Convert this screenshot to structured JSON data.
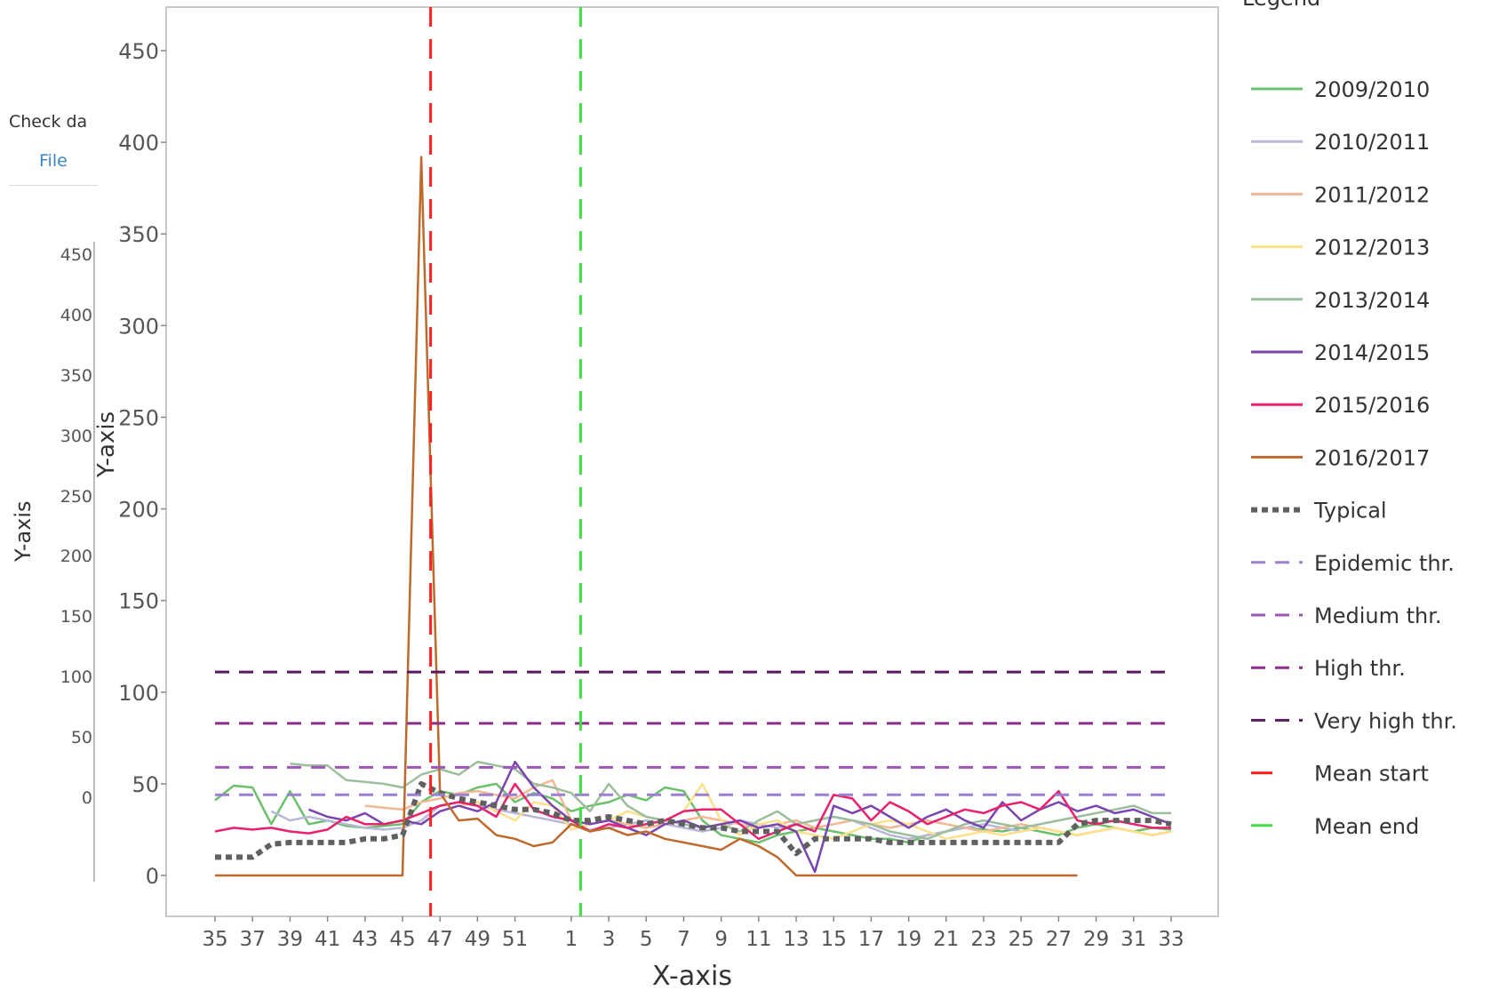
{
  "background_panel": {
    "tab_label": "Check da",
    "file_link": "File",
    "y_ticks": [
      "450",
      "400",
      "350",
      "300",
      "250",
      "200",
      "150",
      "100",
      "50",
      "0"
    ],
    "ylabel": "Y-axis"
  },
  "chart_data": {
    "type": "line",
    "title": "",
    "xlabel": "X-axis",
    "ylabel": "Y-axis",
    "legend_title": "Legend",
    "legend_position": "right",
    "ylim": [
      -20,
      470
    ],
    "y_ticks": [
      0,
      50,
      100,
      150,
      200,
      250,
      300,
      350,
      400,
      450
    ],
    "x_ticks": [
      "35",
      "37",
      "39",
      "41",
      "43",
      "45",
      "47",
      "49",
      "51",
      "1",
      "3",
      "5",
      "7",
      "9",
      "11",
      "13",
      "15",
      "17",
      "19",
      "21",
      "23",
      "25",
      "27",
      "29",
      "31",
      "33"
    ],
    "x": [
      "35",
      "36",
      "37",
      "38",
      "39",
      "40",
      "41",
      "42",
      "43",
      "44",
      "45",
      "46",
      "47",
      "48",
      "49",
      "50",
      "51",
      "52",
      "53",
      "1",
      "2",
      "3",
      "4",
      "5",
      "6",
      "7",
      "8",
      "9",
      "10",
      "11",
      "12",
      "13",
      "14",
      "15",
      "16",
      "17",
      "18",
      "19",
      "20",
      "21",
      "22",
      "23",
      "24",
      "25",
      "26",
      "27",
      "28",
      "29",
      "30",
      "31",
      "32",
      "33"
    ],
    "colors": {
      "2009/2010": "#6cc06c",
      "2010/2011": "#b8b8da",
      "2011/2012": "#f2b894",
      "2012/2013": "#fbe18a",
      "2013/2014": "#9cbe9c",
      "2014/2015": "#7a45b0",
      "2015/2016": "#e8206e",
      "2016/2017": "#bd6a2c",
      "Typical": "#606060",
      "Epidemic thr.": "#9b80cf",
      "Medium thr.": "#9e55b8",
      "High thr.": "#8c2d8a",
      "Very high thr.": "#5c1a5c",
      "Mean start": "#ff2020",
      "Mean end": "#40e040"
    },
    "series": [
      {
        "name": "2009/2010",
        "style": "solid",
        "values": [
          41,
          49,
          48,
          28,
          46,
          28,
          30,
          27,
          26,
          27,
          28,
          40,
          46,
          44,
          48,
          50,
          40,
          45,
          42,
          35,
          38,
          40,
          44,
          41,
          48,
          46,
          30,
          22,
          20,
          18,
          22,
          24,
          26,
          24,
          22,
          20,
          20,
          18,
          22,
          24,
          26,
          25,
          24,
          26,
          24,
          22,
          26,
          28,
          26,
          24,
          26,
          25
        ]
      },
      {
        "name": "2010/2011",
        "style": "solid",
        "values": [
          null,
          null,
          null,
          35,
          30,
          32,
          30,
          28,
          26,
          25,
          26,
          30,
          38,
          40,
          38,
          36,
          34,
          32,
          30,
          28,
          25,
          26,
          28,
          30,
          28,
          26,
          24,
          26,
          30,
          28,
          26,
          28,
          30,
          32,
          30,
          26,
          22,
          20,
          22,
          24,
          26,
          28,
          26,
          24,
          26,
          24,
          22,
          24,
          26,
          24,
          22,
          24
        ]
      },
      {
        "name": "2011/2012",
        "style": "solid",
        "values": [
          null,
          null,
          null,
          null,
          null,
          null,
          null,
          null,
          38,
          37,
          36,
          40,
          42,
          45,
          46,
          44,
          42,
          48,
          52,
          30,
          28,
          30,
          28,
          26,
          28,
          30,
          32,
          30,
          28,
          26,
          28,
          30,
          26,
          28,
          30,
          28,
          26,
          28,
          30,
          28,
          26,
          24,
          26,
          28,
          26,
          24,
          22,
          24,
          26,
          24,
          22,
          24
        ]
      },
      {
        "name": "2012/2013",
        "style": "solid",
        "values": [
          null,
          null,
          null,
          null,
          null,
          null,
          null,
          null,
          null,
          null,
          null,
          null,
          null,
          38,
          40,
          35,
          30,
          40,
          38,
          25,
          28,
          30,
          35,
          32,
          30,
          35,
          50,
          30,
          22,
          28,
          30,
          24,
          22,
          20,
          24,
          28,
          30,
          28,
          24,
          20,
          22,
          24,
          22,
          24,
          26,
          24,
          22,
          24,
          26,
          24,
          22,
          24
        ]
      },
      {
        "name": "2013/2014",
        "style": "solid",
        "values": [
          null,
          null,
          null,
          null,
          61,
          60,
          60,
          52,
          51,
          50,
          48,
          55,
          58,
          55,
          62,
          60,
          58,
          50,
          48,
          45,
          35,
          50,
          38,
          32,
          30,
          28,
          26,
          28,
          24,
          30,
          35,
          28,
          30,
          32,
          30,
          28,
          24,
          22,
          20,
          24,
          28,
          30,
          28,
          26,
          28,
          30,
          32,
          34,
          36,
          38,
          34,
          34
        ]
      },
      {
        "name": "2014/2015",
        "style": "solid",
        "values": [
          null,
          null,
          null,
          null,
          null,
          36,
          32,
          30,
          34,
          28,
          30,
          28,
          35,
          38,
          35,
          40,
          62,
          48,
          38,
          30,
          28,
          30,
          26,
          22,
          28,
          30,
          26,
          28,
          30,
          26,
          28,
          24,
          2,
          38,
          34,
          38,
          32,
          26,
          32,
          36,
          30,
          26,
          40,
          30,
          36,
          40,
          35,
          38,
          34,
          36,
          32,
          28
        ]
      },
      {
        "name": "2015/2016",
        "style": "solid",
        "values": [
          24,
          26,
          25,
          26,
          24,
          23,
          25,
          32,
          28,
          28,
          30,
          34,
          38,
          40,
          38,
          32,
          50,
          36,
          32,
          30,
          24,
          28,
          26,
          28,
          30,
          35,
          36,
          36,
          28,
          20,
          24,
          28,
          24,
          44,
          42,
          30,
          40,
          35,
          28,
          32,
          36,
          34,
          38,
          40,
          36,
          46,
          30,
          28,
          30,
          28,
          26,
          26
        ]
      },
      {
        "name": "2016/2017",
        "style": "solid",
        "values": [
          0,
          0,
          0,
          0,
          0,
          0,
          0,
          0,
          0,
          0,
          0,
          392,
          45,
          30,
          31,
          22,
          20,
          16,
          18,
          28,
          24,
          26,
          22,
          24,
          20,
          18,
          16,
          14,
          20,
          16,
          10,
          0,
          0,
          0,
          0,
          0,
          0,
          0,
          0,
          0,
          0,
          0,
          0,
          0,
          0,
          0,
          0,
          null,
          null,
          null,
          null,
          null
        ]
      },
      {
        "name": "Typical",
        "style": "dotted",
        "values": [
          10,
          10,
          10,
          17,
          18,
          18,
          18,
          18,
          20,
          20,
          22,
          50,
          45,
          42,
          40,
          38,
          36,
          36,
          34,
          30,
          30,
          32,
          30,
          28,
          30,
          28,
          26,
          26,
          24,
          24,
          24,
          12,
          20,
          20,
          20,
          20,
          18,
          18,
          18,
          18,
          18,
          18,
          18,
          18,
          18,
          18,
          28,
          30,
          30,
          30,
          30,
          28
        ]
      },
      {
        "name": "Epidemic thr.",
        "style": "dashed",
        "constant": 44
      },
      {
        "name": "Medium thr.",
        "style": "dashed",
        "constant": 59
      },
      {
        "name": "High thr.",
        "style": "dashed",
        "constant": 83
      },
      {
        "name": "Very high thr.",
        "style": "dashed",
        "constant": 111
      }
    ],
    "vertical_markers": [
      {
        "name": "Mean start",
        "x": "46",
        "style": "dashed"
      },
      {
        "name": "Mean end",
        "x": "1",
        "style": "dashed"
      }
    ]
  }
}
